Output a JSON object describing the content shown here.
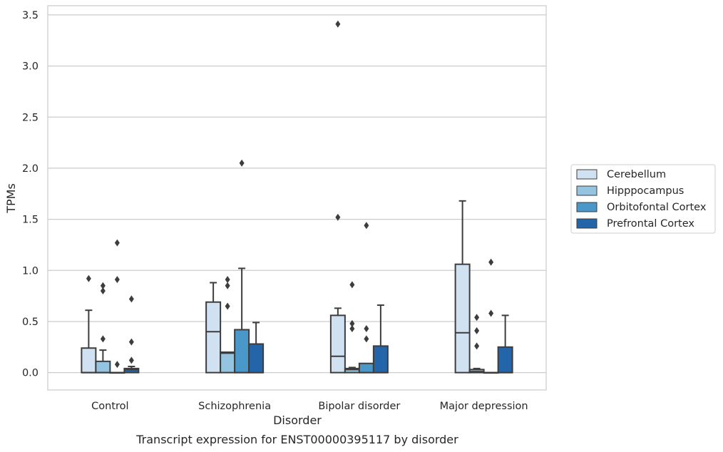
{
  "chart_data": {
    "type": "box",
    "caption": "Transcript expression for ENST00000395117 by disorder",
    "xlabel": "Disorder",
    "ylabel": "TPMs",
    "ylim": [
      -0.17,
      3.59
    ],
    "yticks": [
      0.0,
      0.5,
      1.0,
      1.5,
      2.0,
      2.5,
      3.0,
      3.5
    ],
    "ytick_labels": [
      "0.0",
      "0.5",
      "1.0",
      "1.5",
      "2.0",
      "2.5",
      "3.0",
      "3.5"
    ],
    "grid": "horizontal",
    "legend_position": "right",
    "categories": [
      "Control",
      "Schizophrenia",
      "Bipolar disorder",
      "Major depression"
    ],
    "series": [
      {
        "name": "Cerebellum",
        "color": "#d0e1f2",
        "boxes": [
          {
            "q1": 0.0,
            "median": 0.0,
            "q3": 0.24,
            "whisker_low": 0.0,
            "whisker_high": 0.61,
            "outliers": [
              0.92
            ]
          },
          {
            "q1": 0.0,
            "median": 0.4,
            "q3": 0.69,
            "whisker_low": 0.0,
            "whisker_high": 0.88,
            "outliers": []
          },
          {
            "q1": 0.0,
            "median": 0.16,
            "q3": 0.56,
            "whisker_low": 0.0,
            "whisker_high": 0.63,
            "outliers": [
              1.52,
              3.41
            ]
          },
          {
            "q1": 0.0,
            "median": 0.39,
            "q3": 1.06,
            "whisker_low": 0.0,
            "whisker_high": 1.68,
            "outliers": []
          }
        ]
      },
      {
        "name": "Hipppocampus",
        "color": "#94c4df",
        "boxes": [
          {
            "q1": 0.0,
            "median": 0.0,
            "q3": 0.11,
            "whisker_low": 0.0,
            "whisker_high": 0.22,
            "outliers": [
              0.33,
              0.8,
              0.85
            ]
          },
          {
            "q1": 0.0,
            "median": 0.19,
            "q3": 0.2,
            "whisker_low": 0.0,
            "whisker_high": 0.2,
            "outliers": [
              0.65,
              0.85,
              0.91
            ]
          },
          {
            "q1": 0.0,
            "median": 0.03,
            "q3": 0.04,
            "whisker_low": 0.0,
            "whisker_high": 0.05,
            "outliers": [
              0.43,
              0.48,
              0.86
            ]
          },
          {
            "q1": 0.0,
            "median": 0.01,
            "q3": 0.03,
            "whisker_low": 0.0,
            "whisker_high": 0.04,
            "outliers": [
              0.26,
              0.41,
              0.54
            ]
          }
        ]
      },
      {
        "name": "Orbitofontal Cortex",
        "color": "#4a98c9",
        "boxes": [
          {
            "q1": 0.0,
            "median": 0.0,
            "q3": 0.0,
            "whisker_low": 0.0,
            "whisker_high": 0.0,
            "outliers": [
              0.08,
              0.91,
              1.27
            ]
          },
          {
            "q1": 0.0,
            "median": 0.0,
            "q3": 0.42,
            "whisker_low": 0.0,
            "whisker_high": 1.02,
            "outliers": [
              2.05
            ]
          },
          {
            "q1": 0.0,
            "median": 0.0,
            "q3": 0.09,
            "whisker_low": 0.0,
            "whisker_high": 0.09,
            "outliers": [
              0.33,
              0.43,
              1.44
            ]
          },
          {
            "q1": 0.0,
            "median": 0.0,
            "q3": 0.0,
            "whisker_low": 0.0,
            "whisker_high": 0.0,
            "outliers": [
              0.58,
              1.08
            ]
          }
        ]
      },
      {
        "name": "Prefrontal Cortex",
        "color": "#2464a8",
        "boxes": [
          {
            "q1": 0.0,
            "median": 0.03,
            "q3": 0.04,
            "whisker_low": 0.0,
            "whisker_high": 0.06,
            "outliers": [
              0.12,
              0.3,
              0.72
            ]
          },
          {
            "q1": 0.0,
            "median": 0.0,
            "q3": 0.28,
            "whisker_low": 0.0,
            "whisker_high": 0.49,
            "outliers": []
          },
          {
            "q1": 0.0,
            "median": 0.0,
            "q3": 0.26,
            "whisker_low": 0.0,
            "whisker_high": 0.66,
            "outliers": []
          },
          {
            "q1": 0.0,
            "median": 0.0,
            "q3": 0.25,
            "whisker_low": 0.0,
            "whisker_high": 0.56,
            "outliers": []
          }
        ]
      }
    ]
  }
}
